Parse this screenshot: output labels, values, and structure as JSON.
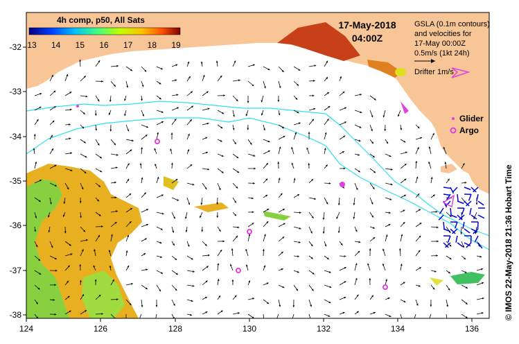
{
  "colorbar": {
    "title": "4h comp, p50, All Sats",
    "ticks": [
      "13",
      "14",
      "15",
      "16",
      "17",
      "18",
      "19"
    ]
  },
  "timestamp": {
    "date": "17-May-2018",
    "time": "04:00Z"
  },
  "legend": {
    "gsla_line1": "GSLA (0.1m contours)",
    "gsla_line2": "and velocities for",
    "gsla_line3": "17-May 00:00Z",
    "velocity_scale": "0.5m/s (1kt 24h)",
    "drifter": "Drifter 1m/s",
    "glider": "Glider",
    "argo": "Argo"
  },
  "axes": {
    "x_ticks": [
      "124",
      "126",
      "128",
      "130",
      "132",
      "134",
      "136"
    ],
    "y_ticks": [
      "-32",
      "-33",
      "-34",
      "-35",
      "-36",
      "-37",
      "-38"
    ]
  },
  "credit": "© IMOS 22-May-2018 21:36 Hobart Time",
  "colors": {
    "land": "#f8c596",
    "ocean": "#ffffff",
    "current_contour": "#2fe0f0",
    "glider": "#e040e0",
    "argo": "#e040e0",
    "drifter": "#e040e0",
    "velocity_arrow": "#000000",
    "hf_radar_arrow": "#0000dd"
  }
}
